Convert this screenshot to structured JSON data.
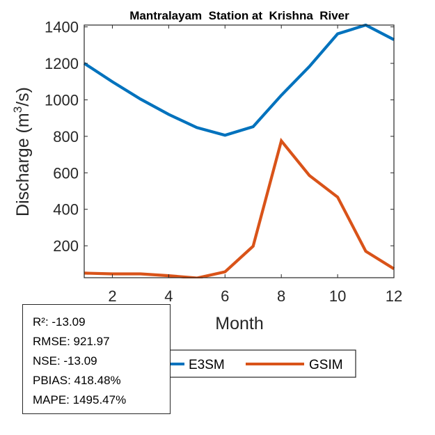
{
  "chart_data": {
    "type": "line",
    "title": "Mantralayam  Station at  Krishna  River",
    "xlabel": "Month",
    "ylabel_main": "Discharge (m",
    "ylabel_sup": "3",
    "ylabel_tail": "/s)",
    "xlim": [
      1,
      12
    ],
    "ylim": [
      25,
      1410
    ],
    "xticks": [
      2,
      4,
      6,
      8,
      10,
      12
    ],
    "yticks": [
      200,
      400,
      600,
      800,
      1000,
      1200,
      1400
    ],
    "grid": false,
    "x": [
      1,
      2,
      3,
      4,
      5,
      6,
      7,
      8,
      9,
      10,
      11,
      12
    ],
    "series": [
      {
        "name": "E3SM",
        "color": "#0072BD",
        "values": [
          1200,
          1099,
          1004,
          920,
          848,
          806,
          853,
          1025,
          1183,
          1362,
          1410,
          1330
        ]
      },
      {
        "name": "GSIM",
        "color": "#D95319",
        "values": [
          50,
          46,
          46,
          36,
          23,
          57,
          198,
          775,
          585,
          467,
          170,
          74
        ]
      }
    ],
    "legend": {
      "placement": "bottom-outside",
      "orientation": "horizontal",
      "entries": [
        "E3SM",
        "GSIM"
      ]
    }
  },
  "stats": {
    "lines": [
      "R²: -13.09",
      "RMSE: 921.97",
      "NSE: -13.09",
      "PBIAS: 418.48%",
      "MAPE: 1495.47%"
    ]
  }
}
